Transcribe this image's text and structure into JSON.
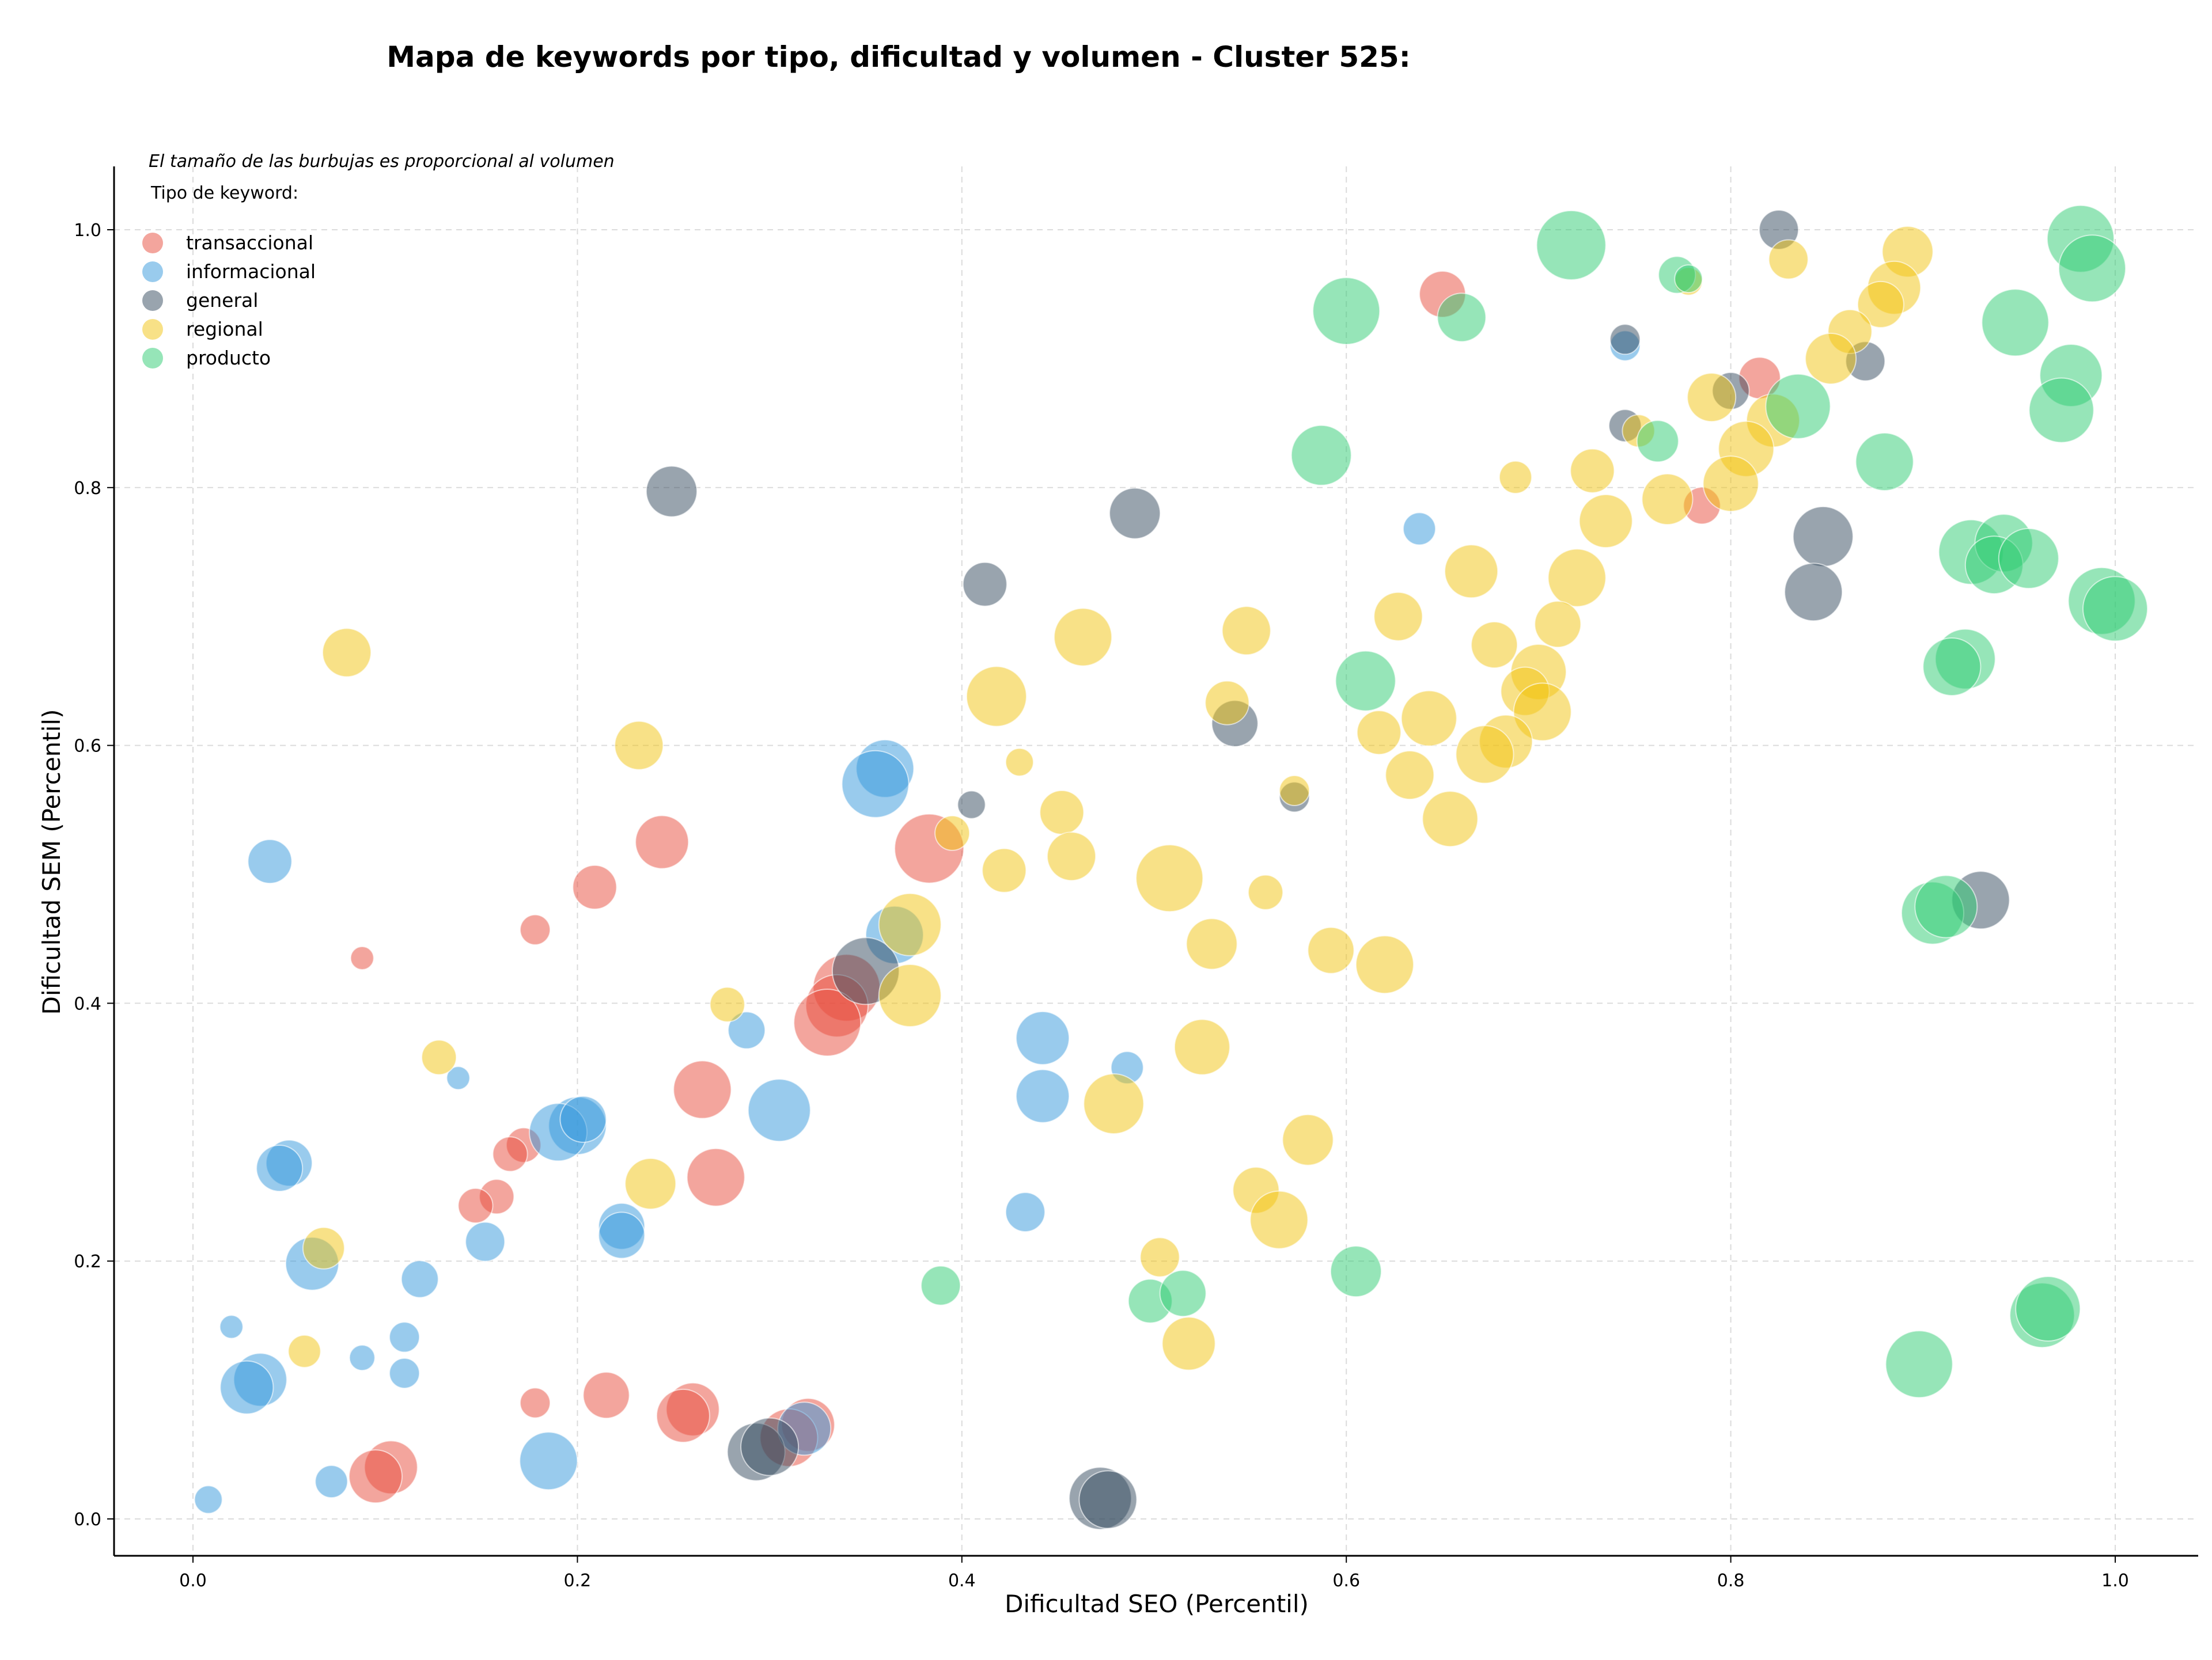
{
  "chart_data": {
    "type": "scatter",
    "title": "Mapa de keywords por tipo, dificultad y volumen - Cluster 525:",
    "xlabel": "Dificultad SEO (Percentil)",
    "ylabel": "Dificultad SEM (Percentil)",
    "xlim": [
      -0.04,
      1.05
    ],
    "ylim": [
      -0.035,
      1.05
    ],
    "x_ticks": [
      "0.0",
      "0.2",
      "0.4",
      "0.6",
      "0.8",
      "1.0"
    ],
    "y_ticks": [
      "0.0",
      "0.2",
      "0.4",
      "0.6",
      "0.8",
      "1.0"
    ],
    "grid": true,
    "legend_position": "top-left",
    "annotation": "El tamaño de las burbujas es proporcional al volumen",
    "legend_title": "Tipo de keyword:",
    "size_encoding": "bubble radius in px (proportional to search volume)",
    "series": [
      {
        "name": "transaccional",
        "color": "#e74c3c",
        "points": [
          [
            0.65,
            0.95,
            40
          ],
          [
            0.815,
            0.885,
            36
          ],
          [
            0.785,
            0.786,
            32
          ],
          [
            0.383,
            0.52,
            60
          ],
          [
            0.244,
            0.525,
            46
          ],
          [
            0.209,
            0.49,
            38
          ],
          [
            0.178,
            0.457,
            26
          ],
          [
            0.088,
            0.435,
            20
          ],
          [
            0.34,
            0.412,
            58
          ],
          [
            0.335,
            0.398,
            54
          ],
          [
            0.33,
            0.385,
            58
          ],
          [
            0.265,
            0.333,
            50
          ],
          [
            0.272,
            0.265,
            50
          ],
          [
            0.172,
            0.29,
            30
          ],
          [
            0.165,
            0.283,
            30
          ],
          [
            0.158,
            0.25,
            30
          ],
          [
            0.147,
            0.243,
            30
          ],
          [
            0.215,
            0.096,
            40
          ],
          [
            0.178,
            0.09,
            26
          ],
          [
            0.26,
            0.085,
            46
          ],
          [
            0.255,
            0.08,
            46
          ],
          [
            0.32,
            0.073,
            46
          ],
          [
            0.31,
            0.063,
            50
          ],
          [
            0.103,
            0.04,
            46
          ],
          [
            0.095,
            0.033,
            46
          ]
        ]
      },
      {
        "name": "informacional",
        "color": "#3498db",
        "points": [
          [
            0.745,
            0.91,
            26
          ],
          [
            0.638,
            0.768,
            28
          ],
          [
            0.36,
            0.582,
            50
          ],
          [
            0.355,
            0.57,
            58
          ],
          [
            0.365,
            0.453,
            50
          ],
          [
            0.04,
            0.51,
            38
          ],
          [
            0.442,
            0.373,
            46
          ],
          [
            0.486,
            0.35,
            28
          ],
          [
            0.288,
            0.379,
            32
          ],
          [
            0.442,
            0.328,
            46
          ],
          [
            0.305,
            0.317,
            54
          ],
          [
            0.2,
            0.305,
            50
          ],
          [
            0.19,
            0.3,
            50
          ],
          [
            0.203,
            0.31,
            40
          ],
          [
            0.223,
            0.227,
            40
          ],
          [
            0.223,
            0.22,
            40
          ],
          [
            0.152,
            0.215,
            34
          ],
          [
            0.118,
            0.186,
            32
          ],
          [
            0.433,
            0.238,
            34
          ],
          [
            0.05,
            0.276,
            40
          ],
          [
            0.045,
            0.272,
            40
          ],
          [
            0.062,
            0.198,
            46
          ],
          [
            0.138,
            0.342,
            20
          ],
          [
            0.11,
            0.141,
            26
          ],
          [
            0.11,
            0.113,
            26
          ],
          [
            0.088,
            0.125,
            22
          ],
          [
            0.02,
            0.149,
            20
          ],
          [
            0.035,
            0.108,
            46
          ],
          [
            0.028,
            0.102,
            46
          ],
          [
            0.185,
            0.045,
            50
          ],
          [
            0.072,
            0.029,
            28
          ],
          [
            0.008,
            0.015,
            24
          ],
          [
            0.318,
            0.07,
            46
          ]
        ]
      },
      {
        "name": "general",
        "color": "#34495e",
        "points": [
          [
            0.825,
            1.0,
            34
          ],
          [
            0.745,
            0.915,
            26
          ],
          [
            0.745,
            0.848,
            28
          ],
          [
            0.8,
            0.875,
            32
          ],
          [
            0.87,
            0.898,
            34
          ],
          [
            0.848,
            0.762,
            52
          ],
          [
            0.843,
            0.719,
            50
          ],
          [
            0.49,
            0.78,
            44
          ],
          [
            0.249,
            0.797,
            44
          ],
          [
            0.412,
            0.725,
            38
          ],
          [
            0.542,
            0.617,
            40
          ],
          [
            0.405,
            0.554,
            24
          ],
          [
            0.573,
            0.56,
            26
          ],
          [
            0.35,
            0.425,
            58
          ],
          [
            0.93,
            0.48,
            50
          ],
          [
            0.472,
            0.016,
            54
          ],
          [
            0.476,
            0.015,
            50
          ],
          [
            0.293,
            0.052,
            50
          ],
          [
            0.3,
            0.056,
            50
          ]
        ]
      },
      {
        "name": "regional",
        "color": "#f1c40f",
        "points": [
          [
            0.892,
            0.983,
            44
          ],
          [
            0.83,
            0.977,
            34
          ],
          [
            0.885,
            0.955,
            46
          ],
          [
            0.878,
            0.942,
            40
          ],
          [
            0.862,
            0.921,
            38
          ],
          [
            0.852,
            0.9,
            44
          ],
          [
            0.778,
            0.96,
            24
          ],
          [
            0.79,
            0.87,
            42
          ],
          [
            0.822,
            0.852,
            46
          ],
          [
            0.808,
            0.83,
            48
          ],
          [
            0.8,
            0.803,
            48
          ],
          [
            0.767,
            0.791,
            44
          ],
          [
            0.752,
            0.844,
            28
          ],
          [
            0.728,
            0.813,
            38
          ],
          [
            0.688,
            0.808,
            28
          ],
          [
            0.735,
            0.774,
            46
          ],
          [
            0.72,
            0.73,
            50
          ],
          [
            0.665,
            0.735,
            46
          ],
          [
            0.71,
            0.694,
            40
          ],
          [
            0.7,
            0.657,
            48
          ],
          [
            0.693,
            0.642,
            42
          ],
          [
            0.702,
            0.626,
            50
          ],
          [
            0.677,
            0.678,
            40
          ],
          [
            0.627,
            0.7,
            42
          ],
          [
            0.643,
            0.621,
            48
          ],
          [
            0.683,
            0.603,
            46
          ],
          [
            0.672,
            0.593,
            50
          ],
          [
            0.617,
            0.61,
            38
          ],
          [
            0.633,
            0.577,
            42
          ],
          [
            0.654,
            0.543,
            48
          ],
          [
            0.548,
            0.689,
            42
          ],
          [
            0.463,
            0.684,
            50
          ],
          [
            0.418,
            0.638,
            52
          ],
          [
            0.538,
            0.633,
            38
          ],
          [
            0.43,
            0.587,
            24
          ],
          [
            0.452,
            0.548,
            38
          ],
          [
            0.395,
            0.532,
            30
          ],
          [
            0.573,
            0.565,
            26
          ],
          [
            0.457,
            0.514,
            42
          ],
          [
            0.422,
            0.503,
            38
          ],
          [
            0.508,
            0.497,
            58
          ],
          [
            0.558,
            0.486,
            30
          ],
          [
            0.373,
            0.461,
            54
          ],
          [
            0.373,
            0.406,
            54
          ],
          [
            0.53,
            0.446,
            44
          ],
          [
            0.592,
            0.441,
            40
          ],
          [
            0.62,
            0.43,
            50
          ],
          [
            0.525,
            0.366,
            48
          ],
          [
            0.479,
            0.322,
            52
          ],
          [
            0.58,
            0.294,
            44
          ],
          [
            0.553,
            0.255,
            40
          ],
          [
            0.565,
            0.232,
            50
          ],
          [
            0.503,
            0.203,
            34
          ],
          [
            0.518,
            0.136,
            46
          ],
          [
            0.08,
            0.672,
            42
          ],
          [
            0.232,
            0.6,
            42
          ],
          [
            0.278,
            0.399,
            30
          ],
          [
            0.128,
            0.358,
            30
          ],
          [
            0.238,
            0.26,
            44
          ],
          [
            0.068,
            0.21,
            36
          ],
          [
            0.058,
            0.13,
            28
          ]
        ]
      },
      {
        "name": "producto",
        "color": "#2ecc71",
        "points": [
          [
            0.717,
            0.988,
            60
          ],
          [
            0.772,
            0.965,
            32
          ],
          [
            0.778,
            0.962,
            24
          ],
          [
            0.6,
            0.937,
            58
          ],
          [
            0.66,
            0.932,
            42
          ],
          [
            0.762,
            0.836,
            36
          ],
          [
            0.835,
            0.863,
            56
          ],
          [
            0.982,
            0.993,
            58
          ],
          [
            0.988,
            0.97,
            58
          ],
          [
            0.948,
            0.928,
            58
          ],
          [
            0.977,
            0.887,
            54
          ],
          [
            0.972,
            0.86,
            56
          ],
          [
            0.88,
            0.82,
            50
          ],
          [
            0.587,
            0.825,
            52
          ],
          [
            0.925,
            0.75,
            56
          ],
          [
            0.942,
            0.757,
            50
          ],
          [
            0.937,
            0.74,
            50
          ],
          [
            0.955,
            0.745,
            52
          ],
          [
            0.993,
            0.712,
            58
          ],
          [
            1.0,
            0.706,
            56
          ],
          [
            0.61,
            0.65,
            52
          ],
          [
            0.922,
            0.667,
            52
          ],
          [
            0.915,
            0.661,
            50
          ],
          [
            0.905,
            0.47,
            54
          ],
          [
            0.912,
            0.475,
            54
          ],
          [
            0.898,
            0.12,
            58
          ],
          [
            0.962,
            0.158,
            56
          ],
          [
            0.965,
            0.163,
            56
          ],
          [
            0.389,
            0.181,
            34
          ],
          [
            0.498,
            0.169,
            38
          ],
          [
            0.515,
            0.175,
            40
          ],
          [
            0.605,
            0.192,
            44
          ]
        ]
      }
    ]
  }
}
